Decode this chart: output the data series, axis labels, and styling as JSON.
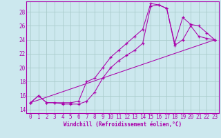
{
  "xlabel": "Windchill (Refroidissement éolien,°C)",
  "background_color": "#cce8ee",
  "grid_color": "#aacccc",
  "line_color": "#aa00aa",
  "marker": "+",
  "xlim": [
    -0.5,
    23.5
  ],
  "ylim": [
    13.5,
    29.5
  ],
  "xticks": [
    0,
    1,
    2,
    3,
    4,
    5,
    6,
    7,
    8,
    9,
    10,
    11,
    12,
    13,
    14,
    15,
    16,
    17,
    18,
    19,
    20,
    21,
    22,
    23
  ],
  "yticks": [
    14,
    16,
    18,
    20,
    22,
    24,
    26,
    28
  ],
  "series1_x": [
    0,
    1,
    2,
    3,
    4,
    5,
    6,
    7,
    8,
    9,
    10,
    11,
    12,
    13,
    14,
    15,
    16,
    17,
    18,
    19,
    20,
    21,
    22,
    23
  ],
  "series1_y": [
    15.0,
    16.0,
    15.0,
    15.0,
    15.0,
    15.0,
    15.2,
    18.0,
    18.5,
    20.0,
    21.5,
    22.5,
    23.5,
    24.5,
    25.5,
    29.2,
    29.0,
    28.5,
    23.5,
    27.2,
    26.2,
    26.0,
    25.0,
    24.0
  ],
  "series2_x": [
    0,
    1,
    2,
    3,
    4,
    5,
    6,
    7,
    8,
    9,
    10,
    11,
    12,
    13,
    14,
    15,
    16,
    17,
    18,
    19,
    20,
    21,
    22,
    23
  ],
  "series2_y": [
    15.0,
    16.0,
    15.0,
    15.0,
    14.8,
    14.8,
    14.8,
    15.2,
    16.5,
    18.5,
    20.0,
    21.0,
    21.8,
    22.5,
    23.5,
    28.8,
    29.0,
    28.5,
    23.2,
    24.0,
    26.0,
    24.5,
    24.2,
    24.0
  ],
  "series3_x": [
    0,
    23
  ],
  "series3_y": [
    15.0,
    24.0
  ],
  "xlabel_fontsize": 5.5,
  "tick_fontsize": 5.5
}
